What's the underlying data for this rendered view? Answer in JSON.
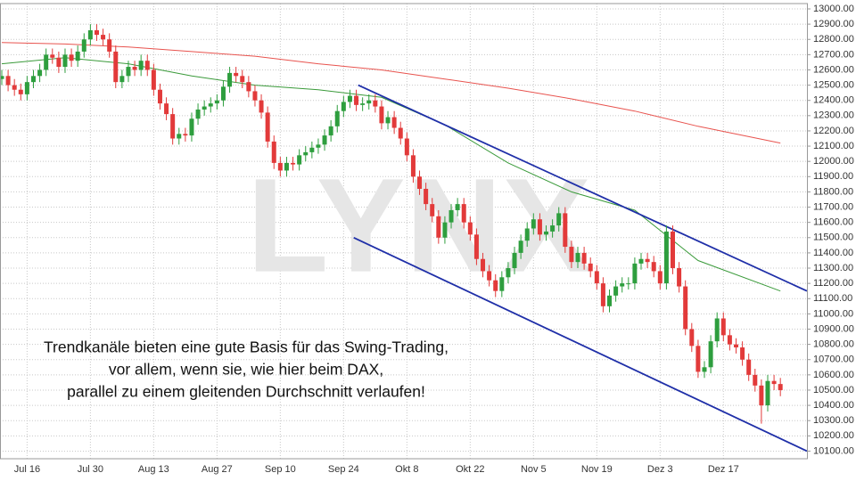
{
  "chart_data": {
    "type": "candlestick",
    "watermark": "LYNX",
    "annotation": [
      "Trendkanäle bieten eine gute Basis für das Swing-Trading,",
      "vor allem, wenn sie, wie hier beim DAX,",
      "parallel zu einem gleitenden Durchschnitt verlaufen!"
    ],
    "categories": [
      null,
      null,
      null,
      null,
      "Jul 16",
      null,
      null,
      null,
      null,
      null,
      null,
      null,
      null,
      null,
      "Jul 30",
      null,
      null,
      null,
      null,
      null,
      null,
      null,
      null,
      null,
      "Aug 13",
      null,
      null,
      null,
      null,
      null,
      null,
      null,
      null,
      null,
      "Aug 27",
      null,
      null,
      null,
      null,
      null,
      null,
      null,
      null,
      null,
      "Sep 10",
      null,
      null,
      null,
      null,
      null,
      null,
      null,
      null,
      null,
      "Sep 24",
      null,
      null,
      null,
      null,
      null,
      null,
      null,
      null,
      null,
      "Okt 8",
      null,
      null,
      null,
      null,
      null,
      null,
      null,
      null,
      null,
      "Okt 22",
      null,
      null,
      null,
      null,
      null,
      null,
      null,
      null,
      null,
      "Nov 5",
      null,
      null,
      null,
      null,
      null,
      null,
      null,
      null,
      null,
      "Nov 19",
      null,
      null,
      null,
      null,
      null,
      null,
      null,
      null,
      null,
      "Dez 3",
      null,
      null,
      null,
      null,
      null,
      null,
      null,
      null,
      null,
      "Dez 17",
      null,
      null,
      null,
      null,
      null,
      null,
      null,
      null,
      null
    ],
    "open": [
      12540,
      12560,
      12500,
      12470,
      12440,
      12520,
      12560,
      12600,
      12700,
      12680,
      12620,
      12700,
      12660,
      12720,
      12800,
      12860,
      12830,
      12800,
      12720,
      12520,
      12560,
      12620,
      12600,
      12660,
      12600,
      12470,
      12380,
      12310,
      12150,
      12180,
      12170,
      12280,
      12340,
      12360,
      12380,
      12400,
      12490,
      12580,
      12560,
      12520,
      12460,
      12400,
      12320,
      12130,
      11990,
      11940,
      11990,
      11980,
      12040,
      12060,
      12090,
      12110,
      12170,
      12230,
      12330,
      12390,
      12430,
      12370,
      12380,
      12400,
      12360,
      12250,
      12290,
      12220,
      12150,
      12040,
      11900,
      11820,
      11720,
      11640,
      11500,
      11600,
      11680,
      11720,
      11600,
      11520,
      11360,
      11280,
      11220,
      11150,
      11240,
      11300,
      11400,
      11480,
      11560,
      11620,
      11520,
      11540,
      11580,
      11660,
      11440,
      11340,
      11400,
      11330,
      11280,
      11200,
      11050,
      11120,
      11180,
      11200,
      11200,
      11330,
      11360,
      11340,
      11280,
      11200,
      11540,
      11300,
      11180,
      10900,
      10790,
      10620,
      10650,
      10820,
      10970,
      10860,
      10800,
      10780,
      10700,
      10600,
      10530,
      10400,
      10560,
      10540
    ],
    "high": [
      12600,
      12600,
      12540,
      12510,
      12560,
      12600,
      12640,
      12740,
      12740,
      12720,
      12740,
      12740,
      12760,
      12840,
      12900,
      12900,
      12870,
      12840,
      12760,
      12600,
      12660,
      12660,
      12700,
      12700,
      12640,
      12510,
      12420,
      12350,
      12220,
      12220,
      12320,
      12380,
      12400,
      12420,
      12440,
      12530,
      12620,
      12620,
      12600,
      12560,
      12500,
      12440,
      12360,
      12170,
      12030,
      12030,
      12030,
      12080,
      12100,
      12130,
      12150,
      12210,
      12270,
      12370,
      12430,
      12470,
      12470,
      12420,
      12440,
      12440,
      12400,
      12330,
      12330,
      12260,
      12190,
      12080,
      11940,
      11860,
      11760,
      11680,
      11640,
      11720,
      11760,
      11760,
      11640,
      11560,
      11400,
      11320,
      11260,
      11280,
      11340,
      11440,
      11520,
      11600,
      11660,
      11660,
      11580,
      11620,
      11700,
      11700,
      11480,
      11440,
      11440,
      11370,
      11320,
      11240,
      11160,
      11220,
      11240,
      11240,
      11370,
      11400,
      11400,
      11380,
      11320,
      11580,
      11580,
      11340,
      11220,
      10940,
      10830,
      10690,
      10860,
      11010,
      11010,
      10900,
      10840,
      10820,
      10740,
      10640,
      10570,
      10600,
      10600,
      10580
    ],
    "low": [
      12500,
      12460,
      12430,
      12400,
      12400,
      12480,
      12520,
      12560,
      12640,
      12580,
      12580,
      12620,
      12620,
      12680,
      12760,
      12790,
      12760,
      12680,
      12480,
      12480,
      12520,
      12560,
      12560,
      12560,
      12430,
      12340,
      12270,
      12110,
      12110,
      12130,
      12130,
      12240,
      12300,
      12320,
      12340,
      12360,
      12450,
      12520,
      12480,
      12420,
      12360,
      12280,
      12090,
      11950,
      11900,
      11900,
      11940,
      11940,
      12000,
      12020,
      12050,
      12070,
      12130,
      12190,
      12290,
      12350,
      12330,
      12330,
      12340,
      12320,
      12210,
      12210,
      12180,
      12110,
      12000,
      11860,
      11780,
      11680,
      11600,
      11460,
      11460,
      11560,
      11640,
      11560,
      11480,
      11320,
      11240,
      11180,
      11110,
      11110,
      11200,
      11260,
      11360,
      11440,
      11520,
      11480,
      11480,
      11500,
      11540,
      11400,
      11300,
      11300,
      11290,
      11240,
      11160,
      11010,
      11010,
      11080,
      11140,
      11160,
      11160,
      11290,
      11300,
      11240,
      11160,
      11160,
      11260,
      11140,
      10860,
      10750,
      10580,
      10580,
      10610,
      10780,
      10820,
      10760,
      10740,
      10660,
      10560,
      10490,
      10280,
      10360,
      10500,
      10460
    ],
    "close": [
      12560,
      12500,
      12470,
      12440,
      12520,
      12560,
      12600,
      12700,
      12680,
      12620,
      12700,
      12660,
      12720,
      12800,
      12860,
      12830,
      12800,
      12720,
      12520,
      12560,
      12620,
      12600,
      12660,
      12600,
      12470,
      12380,
      12310,
      12150,
      12180,
      12170,
      12280,
      12340,
      12360,
      12380,
      12400,
      12490,
      12580,
      12560,
      12520,
      12460,
      12400,
      12320,
      12130,
      11990,
      11940,
      11990,
      11980,
      12040,
      12060,
      12090,
      12110,
      12170,
      12230,
      12330,
      12390,
      12430,
      12370,
      12380,
      12400,
      12360,
      12250,
      12290,
      12220,
      12150,
      12040,
      11900,
      11820,
      11720,
      11640,
      11500,
      11600,
      11680,
      11720,
      11600,
      11520,
      11360,
      11280,
      11220,
      11150,
      11240,
      11300,
      11400,
      11480,
      11560,
      11620,
      11520,
      11540,
      11580,
      11660,
      11440,
      11340,
      11400,
      11330,
      11280,
      11200,
      11050,
      11120,
      11180,
      11200,
      11200,
      11330,
      11360,
      11340,
      11280,
      11200,
      11540,
      11300,
      11180,
      10900,
      10790,
      10620,
      10650,
      10820,
      10970,
      10860,
      10800,
      10780,
      10700,
      10600,
      10530,
      10400,
      10560,
      10540,
      10500
    ],
    "up_color": "#2e9e3e",
    "down_color": "#e23a3a",
    "lines": [
      {
        "color": "#e8534e",
        "x": [
          0,
          10,
          20,
          30,
          40,
          50,
          60,
          70,
          80,
          90,
          100,
          110,
          123
        ],
        "values": [
          12780,
          12770,
          12750,
          12720,
          12690,
          12640,
          12600,
          12540,
          12480,
          12410,
          12330,
          12230,
          12120
        ]
      },
      {
        "color": "#3a9a3a",
        "x": [
          0,
          10,
          20,
          30,
          40,
          50,
          60,
          70,
          80,
          90,
          100,
          110,
          123
        ],
        "values": [
          12640,
          12680,
          12640,
          12560,
          12500,
          12470,
          12420,
          12240,
          11990,
          11800,
          11680,
          11350,
          11150
        ]
      },
      {
        "color": "#1f2fa8",
        "x": [
          56.3,
          127.2
        ],
        "values": [
          12500,
          11150
        ]
      },
      {
        "color": "#1f2fa8",
        "x": [
          55.6,
          127.2
        ],
        "values": [
          11500,
          10100
        ]
      }
    ],
    "xlim": [
      -0.28,
      127.2
    ],
    "ylim": [
      10050,
      13035
    ],
    "yticks": [
      {
        "value": 13000,
        "label": "13000.00"
      },
      {
        "value": 12900,
        "label": "12900.00"
      },
      {
        "value": 12800,
        "label": "12800.00"
      },
      {
        "value": 12700,
        "label": "12700.00"
      },
      {
        "value": 12600,
        "label": "12600.00"
      },
      {
        "value": 12500,
        "label": "12500.00"
      },
      {
        "value": 12400,
        "label": "12400.00"
      },
      {
        "value": 12300,
        "label": "12300.00"
      },
      {
        "value": 12200,
        "label": "12200.00"
      },
      {
        "value": 12100,
        "label": "12100.00"
      },
      {
        "value": 12000,
        "label": "12000.00"
      },
      {
        "value": 11900,
        "label": "11900.00"
      },
      {
        "value": 11800,
        "label": "11800.00"
      },
      {
        "value": 11700,
        "label": "11700.00"
      },
      {
        "value": 11600,
        "label": "11600.00"
      },
      {
        "value": 11500,
        "label": "11500.00"
      },
      {
        "value": 11400,
        "label": "11400.00"
      },
      {
        "value": 11300,
        "label": "11300.00"
      },
      {
        "value": 11200,
        "label": "11200.00"
      },
      {
        "value": 11100,
        "label": "11100.00"
      },
      {
        "value": 11000,
        "label": "11000.00"
      },
      {
        "value": 10900,
        "label": "10900.00"
      },
      {
        "value": 10800,
        "label": "10800.00"
      },
      {
        "value": 10700,
        "label": "10700.00"
      },
      {
        "value": 10600,
        "label": "10600.00"
      },
      {
        "value": 10500,
        "label": "10500.00"
      },
      {
        "value": 10400,
        "label": "10400.00"
      },
      {
        "value": 10300,
        "label": "10300.00"
      },
      {
        "value": 10200,
        "label": "10200.00"
      },
      {
        "value": 10100,
        "label": "10100.00"
      }
    ],
    "grid": true
  }
}
